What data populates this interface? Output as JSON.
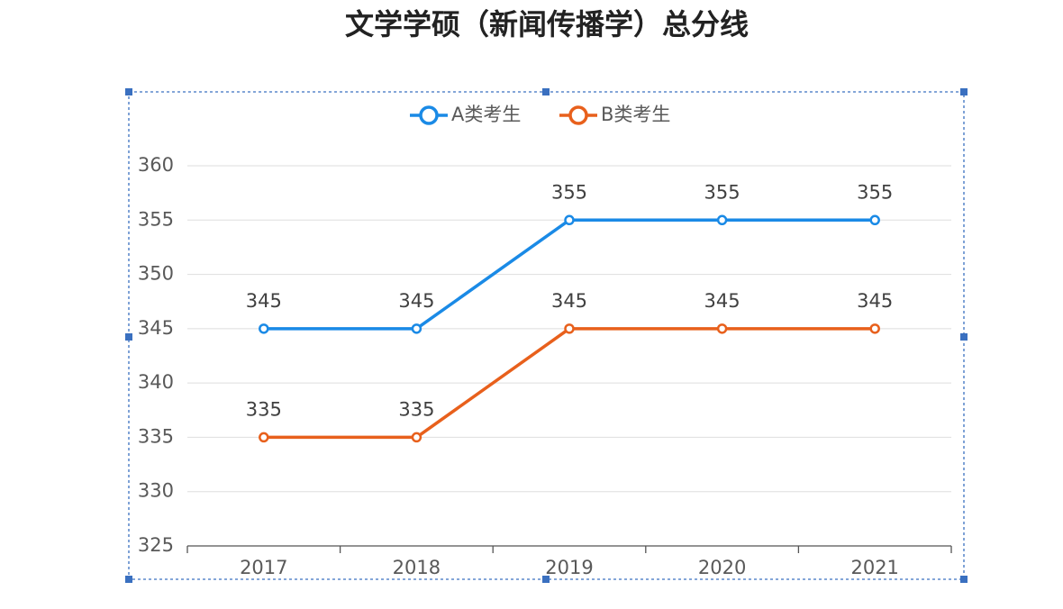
{
  "chart_data": {
    "type": "line",
    "title": "文学学硕（新闻传播学）总分线",
    "categories": [
      "2017",
      "2018",
      "2019",
      "2020",
      "2021"
    ],
    "series": [
      {
        "name": "A类考生",
        "color": "#1a8ae6",
        "values": [
          345,
          345,
          355,
          355,
          355
        ]
      },
      {
        "name": "B类考生",
        "color": "#e8601c",
        "values": [
          335,
          335,
          345,
          345,
          345
        ]
      }
    ],
    "ylim": [
      325,
      360
    ],
    "yticks": [
      325,
      330,
      335,
      340,
      345,
      350,
      355,
      360
    ],
    "grid": true,
    "legend": "top",
    "data_labels": true
  }
}
